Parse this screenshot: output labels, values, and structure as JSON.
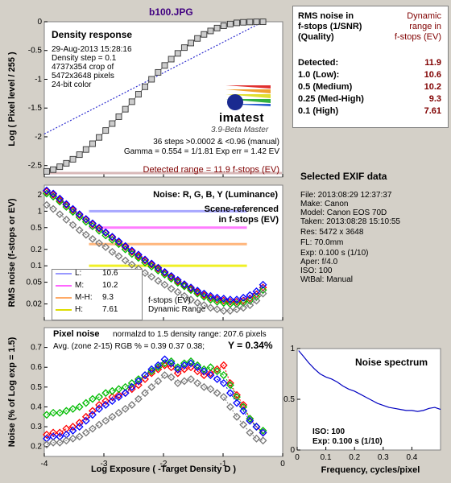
{
  "title": "b100.JPG",
  "density_panel": {
    "heading": "Density response",
    "info_lines": [
      "29-Aug-2013 15:28:16",
      "Density step = 0.1",
      "4737x354 crop of",
      "5472x3648 pixels",
      "24-bit color"
    ],
    "ylabel": "Log ( Pixel level / 255 )",
    "logo_text": "imatest",
    "logo_sub": "3.9-Beta  Master",
    "stats_lines": [
      "36 steps >0.0002 & <0.96 (manual)",
      "Gamma = 0.554 = 1/1.81  Exp err = 1.42 EV"
    ],
    "detected_range": "Detected range = 11.9 f-stops (EV)"
  },
  "noise_panel": {
    "heading": "Noise: R, G, B, Y (Luminance)",
    "note_lines": [
      "Scene-referenced",
      "in f-stops (EV)"
    ],
    "ylabel": "RMS noise (f-stops or EV)",
    "legend": [
      {
        "label": "L:",
        "value": "10.6",
        "color": "#9999ff"
      },
      {
        "label": "M:",
        "value": "10.2",
        "color": "#ff66ff"
      },
      {
        "label": "M-H:",
        "value": "9.3",
        "color": "#ffaa66"
      },
      {
        "label": "H:",
        "value": "7.61",
        "color": "#dddd00"
      }
    ],
    "dr_lines": [
      "f-stops (EV)",
      "Dynamic Range"
    ]
  },
  "pixel_panel": {
    "heading": "Pixel noise",
    "norm_text": "normalzd to 1.5 density range: 207.6 pixels",
    "avg_text": "Avg. (zone 2-15) RGB % = 0.39  0.37  0.38;",
    "y_text": "Y = 0.34%",
    "ylabel": "Noise (% of Log exp = 1.5)",
    "xlabel": "Log Exposure ( -Target Density D )"
  },
  "summary": {
    "header_left": [
      "RMS noise in",
      "f-stops (1/SNR)",
      "(Quality)"
    ],
    "header_right": [
      "Dynamic",
      "range in",
      "f-stops (EV)"
    ],
    "rows": [
      {
        "label": "Detected:",
        "value": "11.9"
      },
      {
        "label": "1.0  (Low):",
        "value": "10.6"
      },
      {
        "label": "0.5  (Medium)",
        "value": "10.2"
      },
      {
        "label": "0.25 (Med-High)",
        "value": "9.3"
      },
      {
        "label": "0.1   (High)",
        "value": "7.61"
      }
    ]
  },
  "exif": {
    "heading": "Selected EXIF data",
    "lines": [
      "File:  2013:08:29 12:37:37",
      "Make:  Canon",
      "Model: Canon EOS 70D",
      "Taken:  2013:08:28 15:10:55",
      "Res:   5472 x 3648",
      "FL:  70.0mm",
      "Exp:  0.100 s  (1/10)",
      "Aper:  f/4.0",
      "ISO:  100",
      "WtBal: Manual"
    ]
  },
  "spectrum": {
    "heading": "Noise spectrum",
    "iso_text": "ISO:    100",
    "exp_text": "Exp:   0.100 s    (1/10)",
    "xlabel": "Frequency, cycles/pixel"
  },
  "chart_data": [
    {
      "type": "scatter",
      "name": "density-response",
      "xlim": [
        -4,
        0
      ],
      "ylim": [
        -2.7,
        0
      ],
      "yticks": [
        0,
        -0.5,
        -1,
        -1.5,
        -2,
        -2.5
      ],
      "ytick_labels": [
        "0",
        "-0.5",
        "-1",
        "-1.5",
        "-2",
        "-2.5"
      ],
      "x": [
        -3.96,
        -3.85,
        -3.74,
        -3.63,
        -3.52,
        -3.41,
        -3.3,
        -3.19,
        -3.08,
        -2.97,
        -2.86,
        -2.75,
        -2.64,
        -2.53,
        -2.42,
        -2.31,
        -2.2,
        -2.09,
        -1.98,
        -1.87,
        -1.76,
        -1.65,
        -1.54,
        -1.43,
        -1.32,
        -1.21,
        -1.1,
        -0.99,
        -0.88,
        -0.77,
        -0.66,
        -0.55,
        -0.44,
        -0.33
      ],
      "y": [
        -2.6,
        -2.57,
        -2.52,
        -2.46,
        -2.39,
        -2.31,
        -2.22,
        -2.12,
        -2.01,
        -1.89,
        -1.77,
        -1.65,
        -1.52,
        -1.39,
        -1.26,
        -1.13,
        -1.0,
        -0.88,
        -0.76,
        -0.65,
        -0.55,
        -0.45,
        -0.37,
        -0.29,
        -0.22,
        -0.16,
        -0.11,
        -0.07,
        -0.04,
        -0.02,
        -0.01,
        -0.005,
        -0.002,
        -0.001
      ],
      "fit_line": {
        "x": [
          -4,
          -0.33
        ],
        "y": [
          -1.95,
          0
        ]
      }
    },
    {
      "type": "line",
      "name": "rms-noise",
      "xlim": [
        -4,
        0
      ],
      "yscale": "log",
      "ylim": [
        0.01,
        3
      ],
      "yticks": [
        2,
        1,
        0.5,
        0.2,
        0.1,
        0.05,
        0.02
      ],
      "ytick_labels": [
        "2",
        "1",
        "0.5",
        "0.2",
        "0.1",
        "0.05",
        "0.02"
      ],
      "x": [
        -3.96,
        -3.85,
        -3.74,
        -3.63,
        -3.52,
        -3.41,
        -3.3,
        -3.19,
        -3.08,
        -2.97,
        -2.86,
        -2.75,
        -2.64,
        -2.53,
        -2.42,
        -2.31,
        -2.2,
        -2.09,
        -1.98,
        -1.87,
        -1.76,
        -1.65,
        -1.54,
        -1.43,
        -1.32,
        -1.21,
        -1.1,
        -0.99,
        -0.88,
        -0.77,
        -0.66,
        -0.55,
        -0.44,
        -0.33
      ],
      "series": [
        {
          "name": "R",
          "color": "#ff0000",
          "values": [
            2.3,
            2.0,
            1.6,
            1.3,
            1.05,
            0.85,
            0.7,
            0.58,
            0.48,
            0.4,
            0.33,
            0.27,
            0.22,
            0.18,
            0.15,
            0.125,
            0.105,
            0.088,
            0.074,
            0.062,
            0.052,
            0.044,
            0.038,
            0.033,
            0.029,
            0.026,
            0.024,
            0.023,
            0.022,
            0.022,
            0.023,
            0.025,
            0.03,
            0.04
          ]
        },
        {
          "name": "G",
          "color": "#00bb00",
          "values": [
            2.1,
            1.85,
            1.5,
            1.2,
            0.97,
            0.78,
            0.64,
            0.53,
            0.44,
            0.36,
            0.3,
            0.25,
            0.2,
            0.165,
            0.14,
            0.115,
            0.097,
            0.082,
            0.069,
            0.058,
            0.049,
            0.042,
            0.036,
            0.031,
            0.027,
            0.024,
            0.022,
            0.021,
            0.02,
            0.02,
            0.021,
            0.023,
            0.027,
            0.036
          ]
        },
        {
          "name": "B",
          "color": "#0000ff",
          "values": [
            2.4,
            2.1,
            1.7,
            1.35,
            1.1,
            0.88,
            0.72,
            0.6,
            0.5,
            0.41,
            0.34,
            0.28,
            0.23,
            0.19,
            0.16,
            0.13,
            0.11,
            0.092,
            0.077,
            0.065,
            0.055,
            0.046,
            0.04,
            0.035,
            0.031,
            0.028,
            0.026,
            0.025,
            0.024,
            0.024,
            0.026,
            0.029,
            0.034,
            0.045
          ]
        },
        {
          "name": "Y",
          "color": "#777777",
          "values": [
            1.3,
            1.1,
            0.88,
            0.7,
            0.56,
            0.45,
            0.37,
            0.31,
            0.26,
            0.22,
            0.18,
            0.15,
            0.125,
            0.105,
            0.088,
            0.074,
            0.063,
            0.053,
            0.045,
            0.038,
            0.033,
            0.028,
            0.024,
            0.021,
            0.019,
            0.017,
            0.016,
            0.015,
            0.015,
            0.016,
            0.017,
            0.019,
            0.023,
            0.031
          ]
        }
      ],
      "reference_lines": [
        {
          "name": "L",
          "y": 1.0,
          "x_end": -0.6,
          "color": "#9999ff"
        },
        {
          "name": "M",
          "y": 0.5,
          "x_end": -0.6,
          "color": "#ff66ff"
        },
        {
          "name": "M-H",
          "y": 0.25,
          "x_end": -0.6,
          "color": "#ffaa66"
        },
        {
          "name": "H",
          "y": 0.1,
          "x_end": -0.6,
          "color": "#eeee00"
        }
      ]
    },
    {
      "type": "line",
      "name": "pixel-noise",
      "xlim": [
        -4,
        0
      ],
      "ylim": [
        0.15,
        0.8
      ],
      "xticks": [
        -4,
        -3,
        -2,
        -1,
        0
      ],
      "xtick_labels": [
        "-4",
        "-3",
        "-2",
        "-1",
        "0"
      ],
      "yticks": [
        0.2,
        0.3,
        0.4,
        0.5,
        0.6,
        0.7
      ],
      "ytick_labels": [
        "0.2",
        "0.3",
        "0.4",
        "0.5",
        "0.6",
        "0.7"
      ],
      "x": [
        -3.96,
        -3.85,
        -3.74,
        -3.63,
        -3.52,
        -3.41,
        -3.3,
        -3.19,
        -3.08,
        -2.97,
        -2.86,
        -2.75,
        -2.64,
        -2.53,
        -2.42,
        -2.31,
        -2.2,
        -2.09,
        -1.98,
        -1.87,
        -1.76,
        -1.65,
        -1.54,
        -1.43,
        -1.32,
        -1.21,
        -1.1,
        -0.99,
        -0.88,
        -0.77,
        -0.66,
        -0.55,
        -0.44,
        -0.33
      ],
      "series": [
        {
          "name": "R",
          "color": "#ff0000",
          "values": [
            0.26,
            0.27,
            0.27,
            0.29,
            0.3,
            0.32,
            0.35,
            0.38,
            0.41,
            0.43,
            0.45,
            0.46,
            0.47,
            0.49,
            0.51,
            0.54,
            0.57,
            0.59,
            0.61,
            0.6,
            0.57,
            0.59,
            0.6,
            0.58,
            0.56,
            0.57,
            0.59,
            0.61,
            0.52,
            0.46,
            0.41,
            0.34,
            0.3,
            0.27
          ]
        },
        {
          "name": "G",
          "color": "#00bb00",
          "values": [
            0.36,
            0.37,
            0.37,
            0.38,
            0.39,
            0.4,
            0.42,
            0.44,
            0.45,
            0.47,
            0.48,
            0.49,
            0.5,
            0.52,
            0.54,
            0.56,
            0.58,
            0.6,
            0.62,
            0.63,
            0.6,
            0.62,
            0.63,
            0.61,
            0.59,
            0.6,
            0.58,
            0.56,
            0.51,
            0.45,
            0.4,
            0.34,
            0.3,
            0.28
          ]
        },
        {
          "name": "B",
          "color": "#0000ff",
          "values": [
            0.24,
            0.25,
            0.25,
            0.26,
            0.28,
            0.3,
            0.33,
            0.36,
            0.39,
            0.41,
            0.43,
            0.45,
            0.47,
            0.5,
            0.53,
            0.56,
            0.59,
            0.61,
            0.64,
            0.62,
            0.59,
            0.61,
            0.62,
            0.6,
            0.58,
            0.56,
            0.54,
            0.52,
            0.47,
            0.42,
            0.38,
            0.33,
            0.3,
            0.27
          ]
        },
        {
          "name": "Y",
          "color": "#777777",
          "values": [
            0.21,
            0.22,
            0.22,
            0.23,
            0.24,
            0.25,
            0.27,
            0.29,
            0.31,
            0.33,
            0.35,
            0.37,
            0.39,
            0.41,
            0.44,
            0.47,
            0.5,
            0.53,
            0.56,
            0.55,
            0.52,
            0.53,
            0.54,
            0.52,
            0.5,
            0.49,
            0.47,
            0.45,
            0.4,
            0.35,
            0.31,
            0.27,
            0.24,
            0.23
          ]
        }
      ]
    },
    {
      "type": "line",
      "name": "noise-spectrum",
      "xlim": [
        0,
        0.5
      ],
      "ylim": [
        0,
        1
      ],
      "xticks": [
        0,
        0.1,
        0.2,
        0.3,
        0.4
      ],
      "xtick_labels": [
        "0",
        "0.1",
        "0.2",
        "0.3",
        "0.4"
      ],
      "yticks": [
        0,
        0.5,
        1
      ],
      "ytick_labels": [
        "0",
        "0.5",
        "1"
      ],
      "x": [
        0.005,
        0.02,
        0.04,
        0.06,
        0.08,
        0.1,
        0.12,
        0.14,
        0.16,
        0.18,
        0.2,
        0.22,
        0.24,
        0.26,
        0.28,
        0.3,
        0.32,
        0.34,
        0.36,
        0.38,
        0.4,
        0.42,
        0.44,
        0.46,
        0.48,
        0.5
      ],
      "values": [
        0.98,
        0.93,
        0.86,
        0.8,
        0.75,
        0.72,
        0.7,
        0.67,
        0.63,
        0.6,
        0.58,
        0.55,
        0.52,
        0.49,
        0.46,
        0.44,
        0.42,
        0.41,
        0.4,
        0.39,
        0.39,
        0.38,
        0.39,
        0.41,
        0.42,
        0.4
      ]
    }
  ]
}
